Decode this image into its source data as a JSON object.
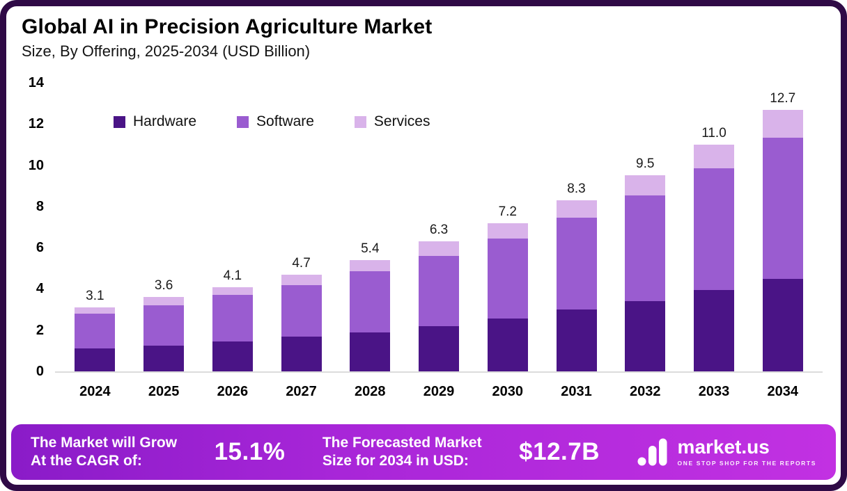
{
  "header": {
    "title": "Global AI in Precision Agriculture Market",
    "subtitle": "Size, By Offering, 2025-2034 (USD Billion)"
  },
  "chart_data": {
    "type": "bar",
    "stacked": true,
    "title": "Global AI in Precision Agriculture Market Size, By Offering, 2025-2034 (USD Billion)",
    "categories": [
      "2024",
      "2025",
      "2026",
      "2027",
      "2028",
      "2029",
      "2030",
      "2031",
      "2032",
      "2033",
      "2034"
    ],
    "series": [
      {
        "name": "Hardware",
        "color": "#4a1486",
        "values": [
          1.1,
          1.25,
          1.45,
          1.7,
          1.9,
          2.2,
          2.55,
          3.0,
          3.4,
          3.95,
          4.5
        ]
      },
      {
        "name": "Software",
        "color": "#9a5cd0",
        "values": [
          1.7,
          1.95,
          2.25,
          2.5,
          2.95,
          3.4,
          3.9,
          4.45,
          5.15,
          5.9,
          6.85
        ]
      },
      {
        "name": "Services",
        "color": "#d9b3ea",
        "values": [
          0.3,
          0.4,
          0.4,
          0.5,
          0.55,
          0.7,
          0.75,
          0.85,
          0.95,
          1.15,
          1.35
        ]
      }
    ],
    "totals": [
      3.1,
      3.6,
      4.1,
      4.7,
      5.4,
      6.3,
      7.2,
      8.3,
      9.5,
      11.0,
      12.7
    ],
    "total_labels": [
      "3.1",
      "3.6",
      "4.1",
      "4.7",
      "5.4",
      "6.3",
      "7.2",
      "8.3",
      "9.5",
      "11.0",
      "12.7"
    ],
    "ylim": [
      0,
      14
    ],
    "yticks": [
      0,
      2,
      4,
      6,
      8,
      10,
      12,
      14
    ],
    "grid": false,
    "legend_position": "top-left"
  },
  "colors": {
    "frame_border": "#2f0a46",
    "hardware": "#4a1486",
    "software": "#9a5cd0",
    "services": "#d9b3ea",
    "footer_gradient_start": "#8a1bc8",
    "footer_gradient_end": "#c231e2",
    "baseline": "#dcdcdc"
  },
  "footer": {
    "cagr_label_line1": "The Market will Grow",
    "cagr_label_line2": "At the CAGR of:",
    "cagr_value": "15.1%",
    "forecast_label_line1": "The Forecasted Market",
    "forecast_label_line2": "Size for 2034 in USD:",
    "forecast_value": "$12.7B",
    "logo": {
      "text": "market.us",
      "tagline": "ONE STOP SHOP FOR THE REPORTS"
    }
  }
}
